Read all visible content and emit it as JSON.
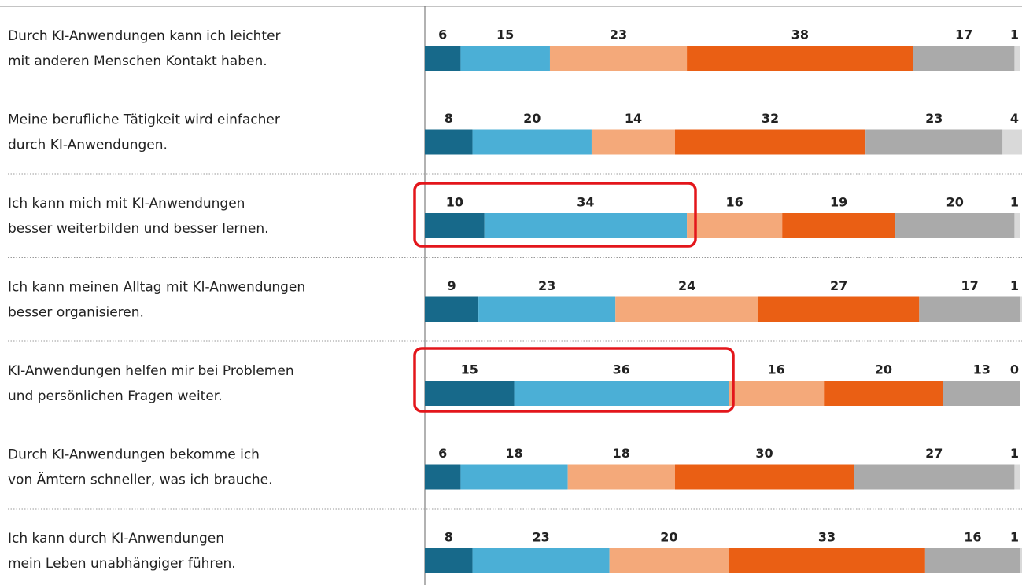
{
  "chart_data": {
    "type": "stacked-bar-horizontal",
    "categories": [
      [
        "Durch KI-Anwendungen kann ich leichter",
        "mit anderen Menschen Kontakt haben."
      ],
      [
        "Meine berufliche Tätigkeit wird einfacher",
        "durch KI-Anwendungen."
      ],
      [
        "Ich kann mich mit KI-Anwendungen",
        "besser weiterbilden und besser lernen."
      ],
      [
        "Ich kann meinen Alltag mit KI-Anwendungen",
        "besser organisieren."
      ],
      [
        "KI-Anwendungen helfen mir bei Problemen",
        "und persönlichen Fragen weiter."
      ],
      [
        "Durch KI-Anwendungen bekomme ich",
        "von Ämtern schneller, was ich brauche."
      ],
      [
        "Ich kann durch KI-Anwendungen",
        "mein Leben unabhängiger führen."
      ]
    ],
    "series": [
      {
        "color": "#17698a",
        "values": [
          6,
          8,
          10,
          9,
          15,
          6,
          8
        ]
      },
      {
        "color": "#4bafd6",
        "values": [
          15,
          20,
          34,
          23,
          36,
          18,
          23
        ]
      },
      {
        "color": "#f4a97a",
        "values": [
          23,
          14,
          16,
          24,
          16,
          18,
          20
        ]
      },
      {
        "color": "#ea5f14",
        "values": [
          38,
          32,
          19,
          27,
          20,
          30,
          33
        ]
      },
      {
        "color": "#aaaaaa",
        "values": [
          17,
          23,
          20,
          17,
          13,
          27,
          16
        ]
      },
      {
        "color": "#d9d9d9",
        "values": [
          1,
          4,
          1,
          1,
          0,
          1,
          1
        ]
      }
    ],
    "xlim": [
      0,
      100
    ]
  }
}
